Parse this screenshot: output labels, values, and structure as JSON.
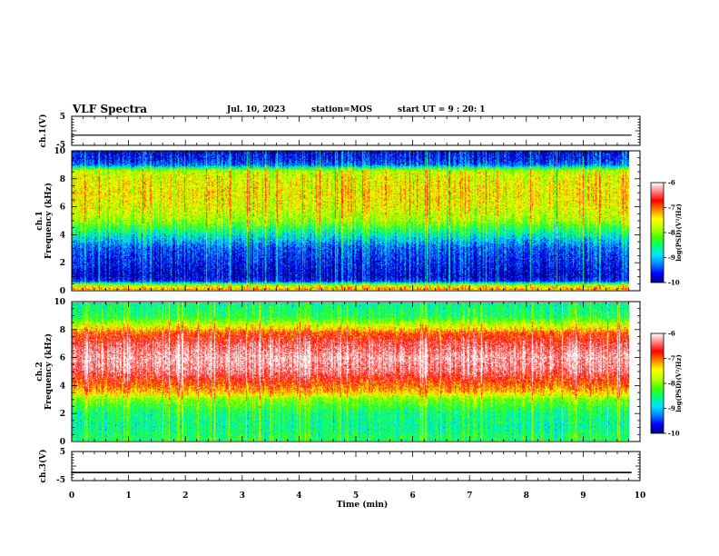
{
  "header": {
    "title": "VLF Spectra",
    "date": "Jul. 10, 2023",
    "station": "station=MOS",
    "start": "start UT =  9 : 20: 1"
  },
  "colorbar": {
    "label": "log(PSD)(V²/Hz)",
    "ticks": [
      "-6",
      "-7",
      "-8",
      "-9",
      "-10"
    ],
    "colors": [
      "#000080",
      "#0000ff",
      "#0080ff",
      "#00e0ff",
      "#00ff80",
      "#40ff00",
      "#c0ff00",
      "#ffff00",
      "#ff8000",
      "#ff0000",
      "#ff8080",
      "#ffffff"
    ]
  },
  "chart_data": [
    {
      "type": "line",
      "name": "channel-1-waveform",
      "ylabel": "ch.1(V)",
      "ylim": [
        -5,
        5
      ],
      "yticks": [
        "5",
        "-5"
      ],
      "x": [
        0,
        9.85
      ],
      "y": [
        -1.5,
        -1.5
      ],
      "xlim": [
        0,
        10
      ]
    },
    {
      "type": "heatmap",
      "name": "channel-1-spectrogram",
      "ylabel": "ch.1\nFrequency (kHz)",
      "ylim": [
        0,
        10
      ],
      "yticks": [
        "0",
        "2",
        "4",
        "6",
        "8",
        "10"
      ],
      "xlim": [
        0,
        10
      ],
      "time_extent_min": [
        0,
        9.85
      ],
      "zlim": [
        -10,
        -6
      ],
      "profile_freq_khz": [
        0,
        0.3,
        0.6,
        1,
        2,
        3,
        4,
        5,
        6,
        7,
        8,
        8.6,
        9,
        9.4,
        10
      ],
      "profile_log_psd": [
        -7.2,
        -7.8,
        -9.6,
        -9.8,
        -9.6,
        -9.4,
        -8.7,
        -7.9,
        -7.6,
        -7.5,
        -7.6,
        -7.8,
        -9.3,
        -9.6,
        -9.7
      ]
    },
    {
      "type": "heatmap",
      "name": "channel-2-spectrogram",
      "ylabel": "ch.2\nFrequency (kHz)",
      "ylim": [
        0,
        10
      ],
      "yticks": [
        "0",
        "2",
        "4",
        "6",
        "8",
        "10"
      ],
      "xlim": [
        0,
        10
      ],
      "time_extent_min": [
        0,
        9.85
      ],
      "zlim": [
        -10,
        -6
      ],
      "profile_freq_khz": [
        0,
        1,
        2,
        3,
        3.5,
        4,
        5,
        6,
        7,
        7.8,
        8.2,
        9,
        10
      ],
      "profile_log_psd": [
        -8.4,
        -8.6,
        -8.5,
        -8.0,
        -7.3,
        -7.0,
        -6.4,
        -6.2,
        -6.5,
        -6.9,
        -7.5,
        -8.4,
        -8.6
      ]
    },
    {
      "type": "line",
      "name": "channel-3-waveform",
      "ylabel": "ch.3(V)",
      "ylim": [
        -5,
        5
      ],
      "yticks": [
        "5",
        "-5"
      ],
      "x": [
        0,
        9.85
      ],
      "y": [
        -2.2,
        -2.2
      ],
      "xlim": [
        0,
        10
      ],
      "xlabel": "Time (min)",
      "xticks": [
        "0",
        "1",
        "2",
        "3",
        "4",
        "5",
        "6",
        "7",
        "8",
        "9",
        "10"
      ]
    }
  ]
}
